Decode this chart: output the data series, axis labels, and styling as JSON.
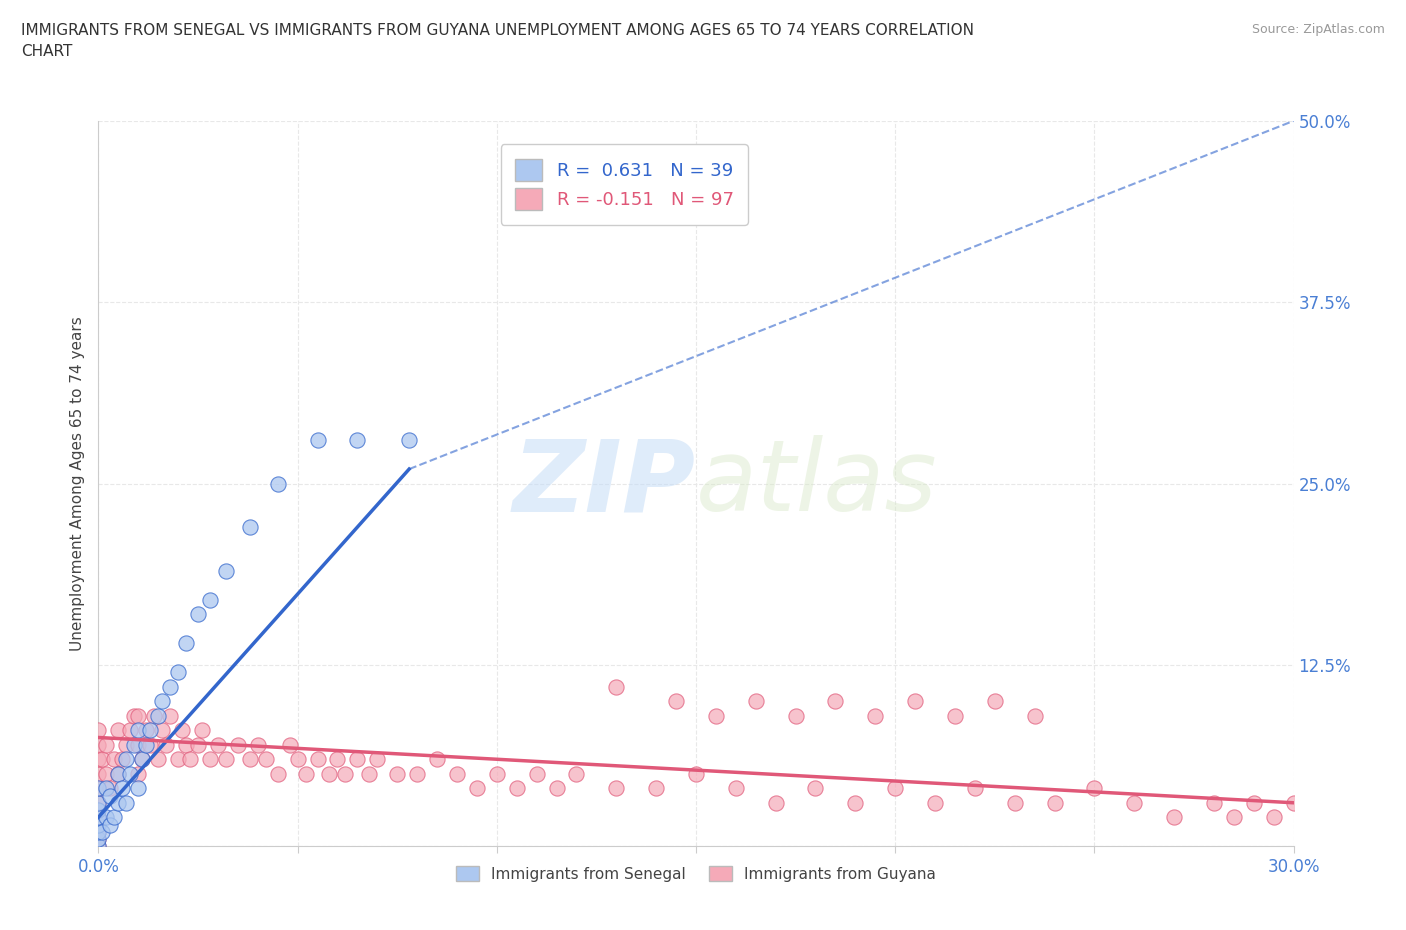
{
  "title": "IMMIGRANTS FROM SENEGAL VS IMMIGRANTS FROM GUYANA UNEMPLOYMENT AMONG AGES 65 TO 74 YEARS CORRELATION\nCHART",
  "source": "Source: ZipAtlas.com",
  "ylabel": "Unemployment Among Ages 65 to 74 years",
  "xlim": [
    0.0,
    0.3
  ],
  "ylim": [
    0.0,
    0.5
  ],
  "xticks": [
    0.0,
    0.05,
    0.1,
    0.15,
    0.2,
    0.25,
    0.3
  ],
  "xticklabels": [
    "0.0%",
    "",
    "",
    "",
    "",
    "",
    "30.0%"
  ],
  "yticks": [
    0.0,
    0.125,
    0.25,
    0.375,
    0.5
  ],
  "yticklabels": [
    "",
    "12.5%",
    "25.0%",
    "37.5%",
    "50.0%"
  ],
  "senegal_R": 0.631,
  "senegal_N": 39,
  "guyana_R": -0.151,
  "guyana_N": 97,
  "senegal_color": "#adc8f0",
  "guyana_color": "#f5aab8",
  "senegal_line_color": "#3366cc",
  "guyana_line_color": "#e05878",
  "watermark_zip": "ZIP",
  "watermark_atlas": "atlas",
  "background_color": "#ffffff",
  "grid_color": "#e8e8e8",
  "senegal_x": [
    0.0,
    0.0,
    0.0,
    0.0,
    0.0,
    0.0,
    0.0,
    0.0,
    0.001,
    0.002,
    0.002,
    0.003,
    0.003,
    0.004,
    0.005,
    0.005,
    0.006,
    0.007,
    0.007,
    0.008,
    0.009,
    0.01,
    0.01,
    0.011,
    0.012,
    0.013,
    0.015,
    0.016,
    0.018,
    0.02,
    0.022,
    0.025,
    0.028,
    0.032,
    0.038,
    0.045,
    0.055,
    0.065,
    0.078
  ],
  "senegal_y": [
    0.0,
    0.005,
    0.01,
    0.015,
    0.02,
    0.025,
    0.03,
    0.04,
    0.01,
    0.02,
    0.04,
    0.015,
    0.035,
    0.02,
    0.03,
    0.05,
    0.04,
    0.03,
    0.06,
    0.05,
    0.07,
    0.04,
    0.08,
    0.06,
    0.07,
    0.08,
    0.09,
    0.1,
    0.11,
    0.12,
    0.14,
    0.16,
    0.17,
    0.19,
    0.22,
    0.25,
    0.28,
    0.28,
    0.28
  ],
  "guyana_x": [
    0.0,
    0.0,
    0.0,
    0.0,
    0.0,
    0.0,
    0.0,
    0.0,
    0.0,
    0.0,
    0.001,
    0.002,
    0.002,
    0.003,
    0.004,
    0.005,
    0.005,
    0.006,
    0.007,
    0.008,
    0.009,
    0.01,
    0.01,
    0.01,
    0.011,
    0.012,
    0.013,
    0.014,
    0.015,
    0.016,
    0.017,
    0.018,
    0.02,
    0.021,
    0.022,
    0.023,
    0.025,
    0.026,
    0.028,
    0.03,
    0.032,
    0.035,
    0.038,
    0.04,
    0.042,
    0.045,
    0.048,
    0.05,
    0.052,
    0.055,
    0.058,
    0.06,
    0.062,
    0.065,
    0.068,
    0.07,
    0.075,
    0.08,
    0.085,
    0.09,
    0.095,
    0.1,
    0.105,
    0.11,
    0.115,
    0.12,
    0.13,
    0.14,
    0.15,
    0.16,
    0.17,
    0.18,
    0.19,
    0.2,
    0.21,
    0.22,
    0.23,
    0.24,
    0.25,
    0.26,
    0.27,
    0.28,
    0.285,
    0.29,
    0.295,
    0.3,
    0.13,
    0.145,
    0.155,
    0.165,
    0.175,
    0.185,
    0.195,
    0.205,
    0.215,
    0.225,
    0.235
  ],
  "guyana_y": [
    0.0,
    0.005,
    0.01,
    0.02,
    0.03,
    0.04,
    0.05,
    0.06,
    0.07,
    0.08,
    0.06,
    0.05,
    0.07,
    0.04,
    0.06,
    0.05,
    0.08,
    0.06,
    0.07,
    0.08,
    0.09,
    0.05,
    0.07,
    0.09,
    0.06,
    0.08,
    0.07,
    0.09,
    0.06,
    0.08,
    0.07,
    0.09,
    0.06,
    0.08,
    0.07,
    0.06,
    0.07,
    0.08,
    0.06,
    0.07,
    0.06,
    0.07,
    0.06,
    0.07,
    0.06,
    0.05,
    0.07,
    0.06,
    0.05,
    0.06,
    0.05,
    0.06,
    0.05,
    0.06,
    0.05,
    0.06,
    0.05,
    0.05,
    0.06,
    0.05,
    0.04,
    0.05,
    0.04,
    0.05,
    0.04,
    0.05,
    0.04,
    0.04,
    0.05,
    0.04,
    0.03,
    0.04,
    0.03,
    0.04,
    0.03,
    0.04,
    0.03,
    0.03,
    0.04,
    0.03,
    0.02,
    0.03,
    0.02,
    0.03,
    0.02,
    0.03,
    0.11,
    0.1,
    0.09,
    0.1,
    0.09,
    0.1,
    0.09,
    0.1,
    0.09,
    0.1,
    0.09
  ],
  "senegal_trendline_x0": 0.0,
  "senegal_trendline_y0": 0.02,
  "senegal_trendline_x1": 0.078,
  "senegal_trendline_y1": 0.26,
  "senegal_trendline_ext_x1": 0.3,
  "senegal_trendline_ext_y1": 0.5,
  "guyana_trendline_x0": 0.0,
  "guyana_trendline_y0": 0.075,
  "guyana_trendline_x1": 0.3,
  "guyana_trendline_y1": 0.03
}
